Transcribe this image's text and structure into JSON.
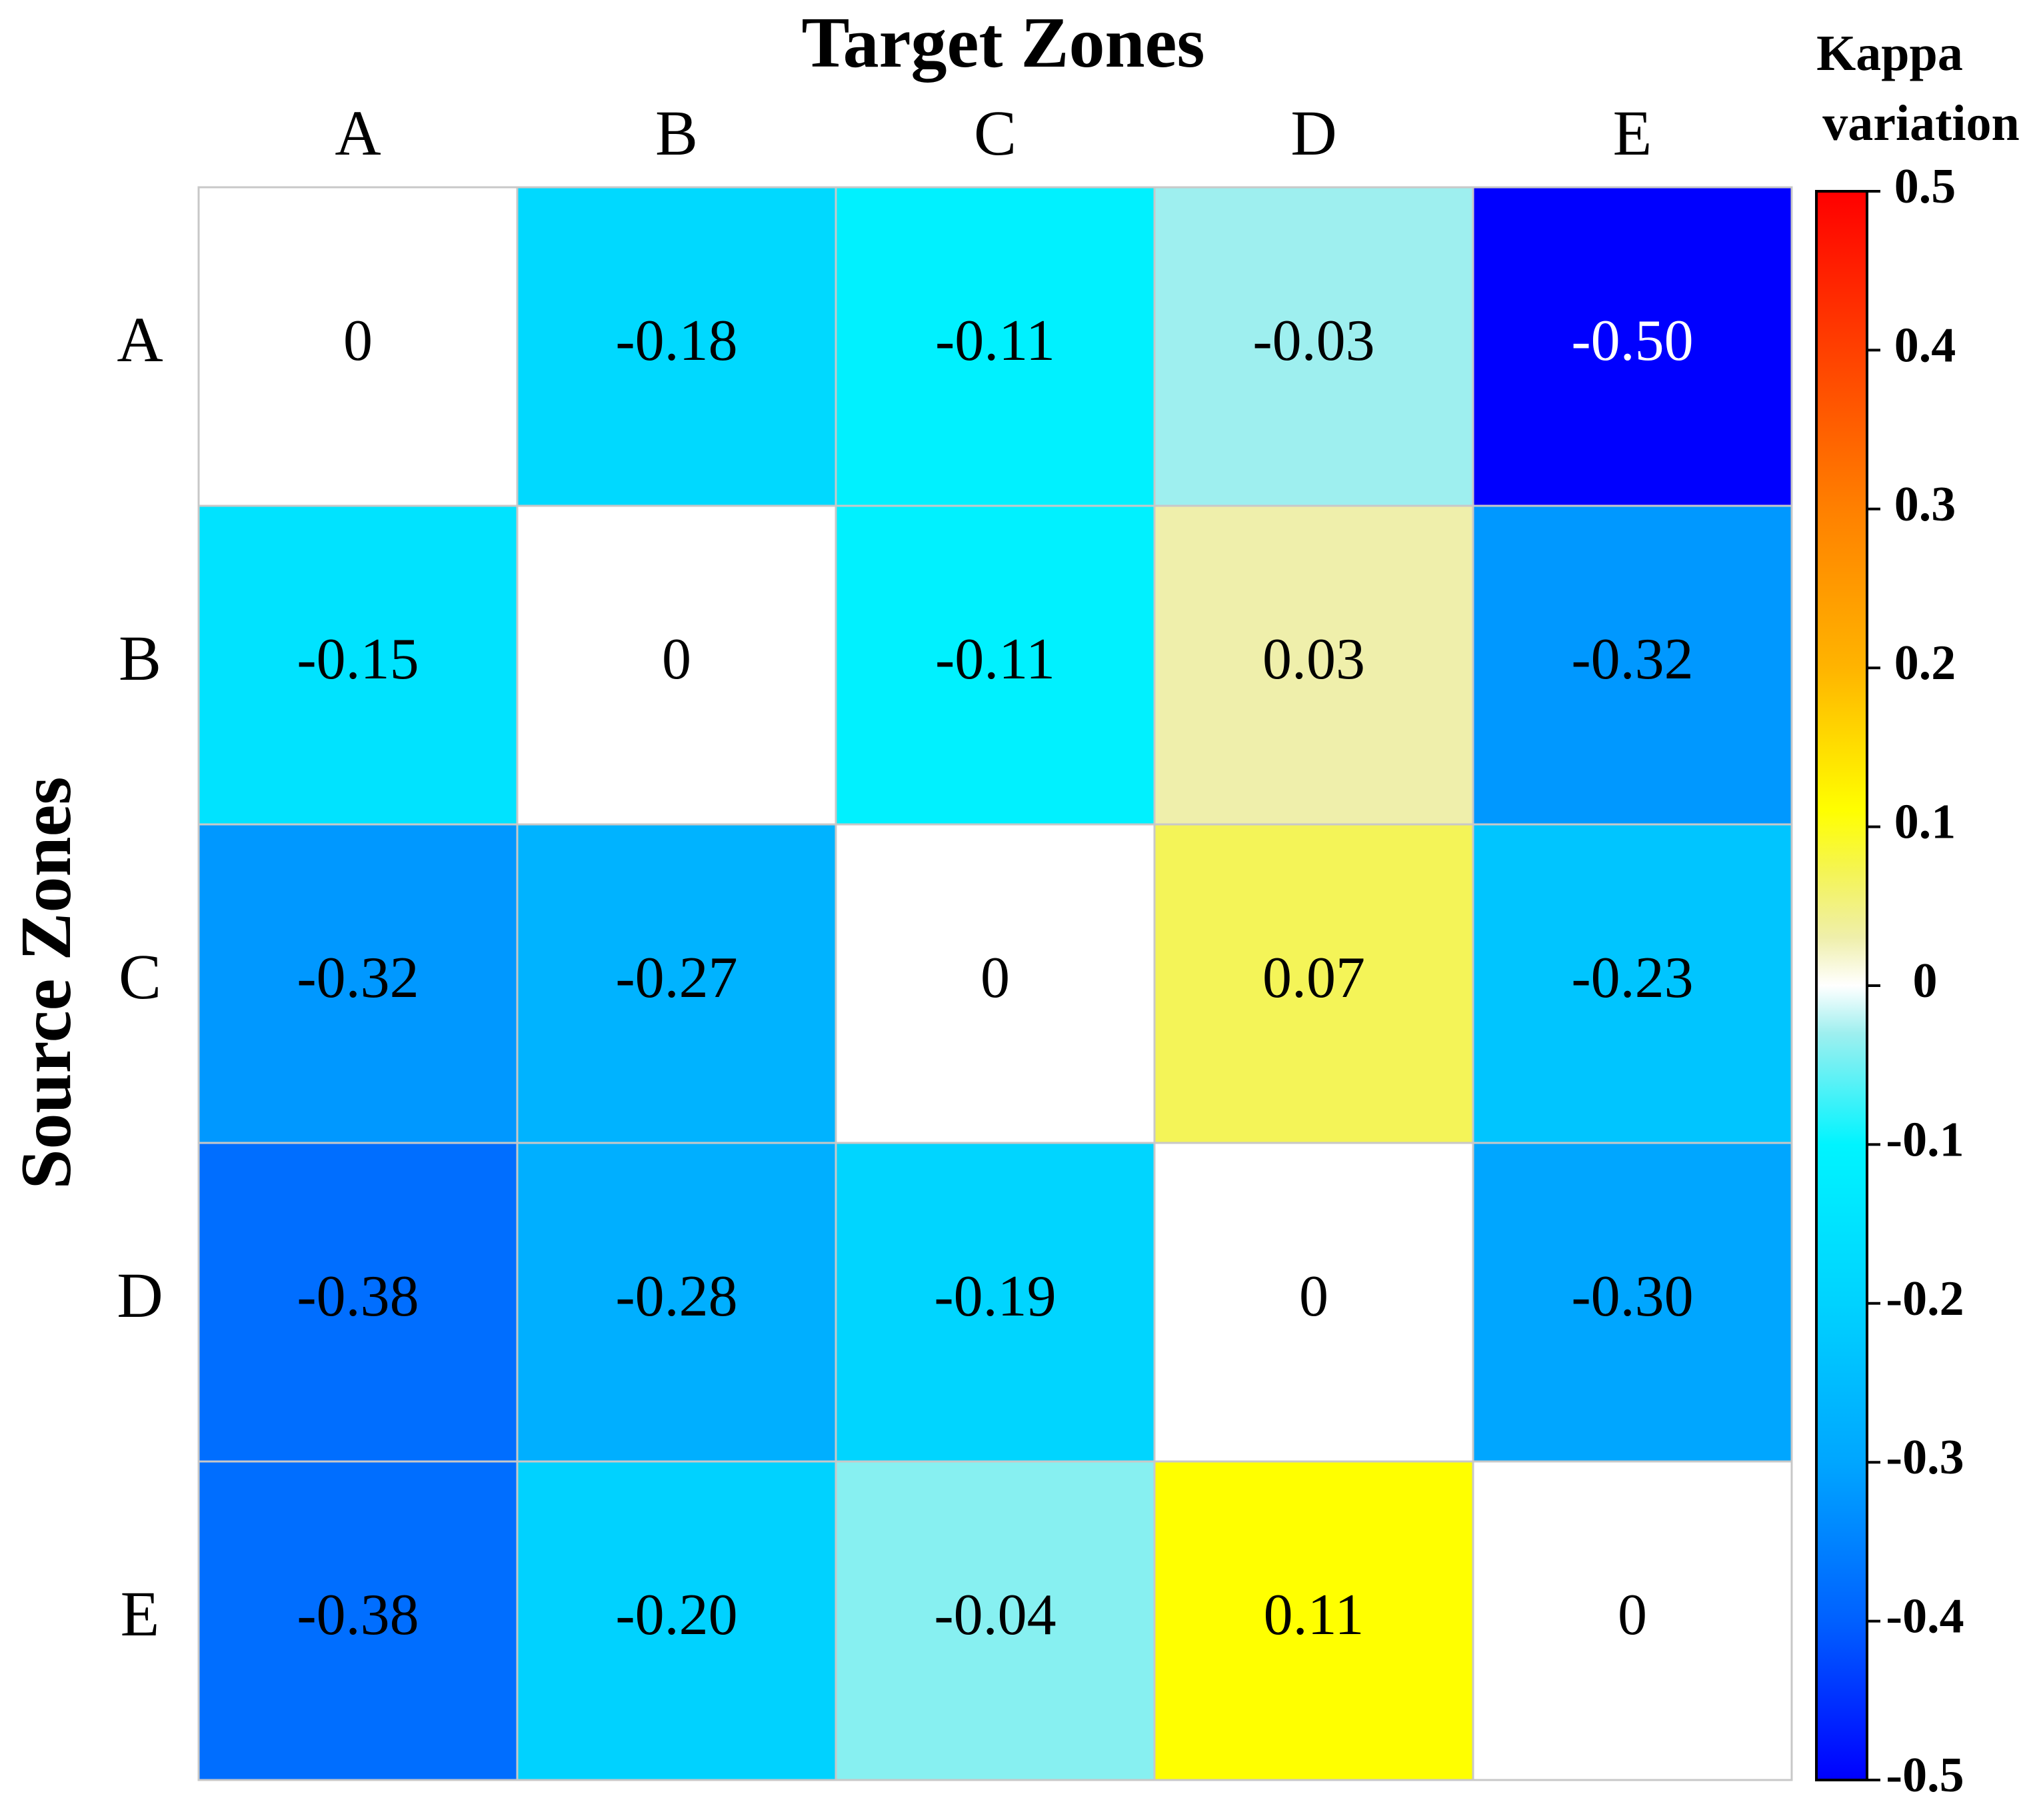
{
  "chart_data": {
    "type": "heatmap",
    "title": "Target Zones",
    "xlabel": "Target Zones",
    "ylabel": "Source Zones",
    "x_categories": [
      "A",
      "B",
      "C",
      "D",
      "E"
    ],
    "y_categories": [
      "A",
      "B",
      "C",
      "D",
      "E"
    ],
    "cells": [
      [
        "0",
        "-0.18",
        "-0.11",
        "-0.03",
        "-0.50"
      ],
      [
        "-0.15",
        "0",
        "-0.11",
        "0.03",
        "-0.32"
      ],
      [
        "-0.32",
        "-0.27",
        "0",
        "0.07",
        "-0.23"
      ],
      [
        "-0.38",
        "-0.28",
        "-0.19",
        "0",
        "-0.30"
      ],
      [
        "-0.38",
        "-0.20",
        "-0.04",
        "0.11",
        "0"
      ]
    ],
    "values": [
      [
        0,
        -0.18,
        -0.11,
        -0.03,
        -0.5
      ],
      [
        -0.15,
        0,
        -0.11,
        0.03,
        -0.32
      ],
      [
        -0.32,
        -0.27,
        0,
        0.07,
        -0.23
      ],
      [
        -0.38,
        -0.28,
        -0.19,
        0,
        -0.3
      ],
      [
        -0.38,
        -0.2,
        -0.04,
        0.11,
        0
      ]
    ],
    "colorbar": {
      "title_lines": [
        "Kappa",
        "variation"
      ],
      "range": [
        -0.5,
        0.5
      ],
      "ticks": [
        0.5,
        0.4,
        0.3,
        0.2,
        0.1,
        0,
        -0.1,
        -0.2,
        -0.3,
        -0.4,
        -0.5
      ],
      "tick_labels": [
        "0.5",
        "0.4",
        "0.3",
        "0.2",
        "0.1",
        "0",
        "-0.1",
        "-0.2",
        "-0.3",
        "-0.4",
        "-0.5"
      ]
    },
    "colors": {
      "min": "#0000ff",
      "max": "#ff0000",
      "zero": "#ffffff",
      "grid": "#c8c8c8",
      "text_dark": "#000000",
      "text_light": "#ffffff"
    },
    "color_stops": [
      {
        "value": -0.5,
        "color": "#0000ff"
      },
      {
        "value": -0.4,
        "color": "#0060ff"
      },
      {
        "value": -0.3,
        "color": "#00a6ff"
      },
      {
        "value": -0.2,
        "color": "#00d2ff"
      },
      {
        "value": -0.1,
        "color": "#00f4ff"
      },
      {
        "value": -0.03,
        "color": "#9eefef"
      },
      {
        "value": 0,
        "color": "#ffffff"
      },
      {
        "value": 0.03,
        "color": "#efefab"
      },
      {
        "value": 0.07,
        "color": "#f4f458"
      },
      {
        "value": 0.11,
        "color": "#ffff00"
      },
      {
        "value": 0.2,
        "color": "#ffb400"
      },
      {
        "value": 0.3,
        "color": "#ff8000"
      },
      {
        "value": 0.4,
        "color": "#ff4000"
      },
      {
        "value": 0.5,
        "color": "#ff0000"
      }
    ],
    "cell_text_light": [
      [
        false,
        false,
        false,
        false,
        true
      ],
      [
        false,
        false,
        false,
        false,
        false
      ],
      [
        false,
        false,
        false,
        false,
        false
      ],
      [
        false,
        false,
        false,
        false,
        false
      ],
      [
        false,
        false,
        false,
        false,
        false
      ]
    ]
  }
}
